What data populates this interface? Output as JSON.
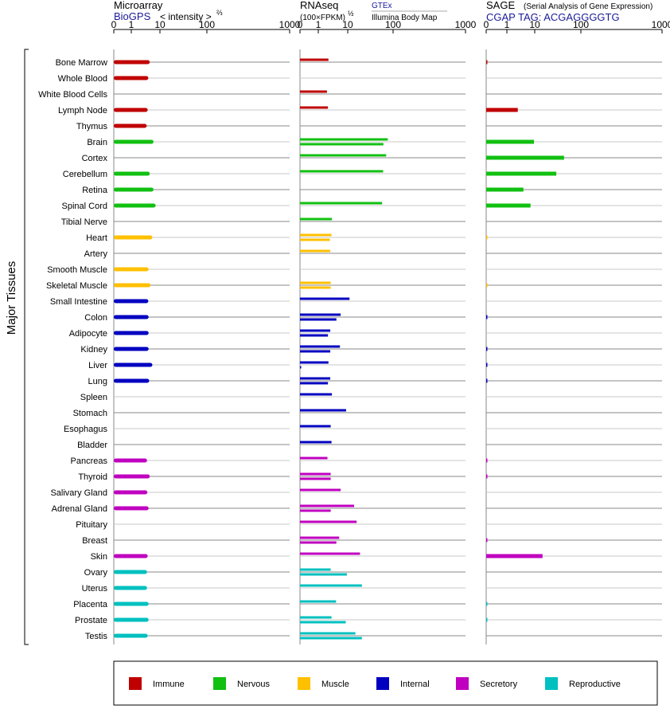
{
  "header": {
    "microarray_title": "Microarray",
    "microarray_source": "BioGPS",
    "microarray_unit": "< intensity >",
    "microarray_unit_exp": "⅔",
    "rnaseq_title": "RNAseq",
    "rnaseq_unit": "(100×FPKM)",
    "rnaseq_unit_exp": "½",
    "rnaseq_source_1": "GTEx",
    "rnaseq_source_2": "Illumina Body Map",
    "sage_title": "SAGE",
    "sage_subtitle": "(Serial Analysis of Gene Expression)",
    "sage_tag": "CGAP TAG: ACGAGGGGTG"
  },
  "chart_data": {
    "type": "bar",
    "orientation": "horizontal",
    "y_group_label": "Major Tissues",
    "x_scale": "power (nonlinear: ticks 0, 1, 10, 100, 1000)",
    "x_ticks": [
      "0",
      "1",
      "10",
      "100",
      "1000"
    ],
    "xlim": [
      0,
      1000
    ],
    "tissues": [
      "Bone Marrow",
      "Whole Blood",
      "White Blood Cells",
      "Lymph Node",
      "Thymus",
      "Brain",
      "Cortex",
      "Cerebellum",
      "Retina",
      "Spinal Cord",
      "Tibial Nerve",
      "Heart",
      "Artery",
      "Smooth Muscle",
      "Skeletal Muscle",
      "Small Intestine",
      "Colon",
      "Adipocyte",
      "Kidney",
      "Liver",
      "Lung",
      "Spleen",
      "Stomach",
      "Esophagus",
      "Bladder",
      "Pancreas",
      "Thyroid",
      "Salivary Gland",
      "Adrenal Gland",
      "Pituitary",
      "Breast",
      "Skin",
      "Ovary",
      "Uterus",
      "Placenta",
      "Prostate",
      "Testis"
    ],
    "tissue_group": [
      "Immune",
      "Immune",
      "Immune",
      "Immune",
      "Immune",
      "Nervous",
      "Nervous",
      "Nervous",
      "Nervous",
      "Nervous",
      "Nervous",
      "Muscle",
      "Muscle",
      "Muscle",
      "Muscle",
      "Internal",
      "Internal",
      "Internal",
      "Internal",
      "Internal",
      "Internal",
      "Internal",
      "Internal",
      "Internal",
      "Internal",
      "Secretory",
      "Secretory",
      "Secretory",
      "Secretory",
      "Secretory",
      "Secretory",
      "Secretory",
      "Reproductive",
      "Reproductive",
      "Reproductive",
      "Reproductive",
      "Reproductive"
    ],
    "groups": [
      {
        "name": "Immune",
        "color": "#c00000"
      },
      {
        "name": "Nervous",
        "color": "#11c011"
      },
      {
        "name": "Muscle",
        "color": "#ffc000"
      },
      {
        "name": "Internal",
        "color": "#0000c0"
      },
      {
        "name": "Secretory",
        "color": "#c000c0"
      },
      {
        "name": "Reproductive",
        "color": "#00c0c0"
      }
    ],
    "microarray": [
      5,
      4.5,
      null,
      4.3,
      4.0,
      6.5,
      null,
      5,
      6.5,
      7.5,
      null,
      6,
      null,
      4.6,
      5.3,
      4.5,
      4.6,
      4.6,
      4.6,
      6,
      4.8,
      null,
      null,
      null,
      null,
      4.1,
      5,
      4.2,
      4.6,
      null,
      null,
      4.3,
      4.1,
      4.1,
      4.6,
      4.6,
      4.3
    ],
    "rnaseq_gtex": [
      2.6,
      null,
      2.3,
      2.5,
      null,
      77,
      71,
      61,
      null,
      58,
      3.4,
      3.3,
      3.0,
      null,
      3.1,
      11,
      6.3,
      3.0,
      6.0,
      2.6,
      3.0,
      3.4,
      9,
      3.1,
      3.3,
      2.4,
      3.1,
      6.3,
      14,
      16,
      5.7,
      19,
      3.1,
      21,
      4.6,
      3.3,
      15
    ],
    "rnaseq_bodymap": [
      null,
      null,
      null,
      null,
      null,
      62,
      null,
      null,
      null,
      null,
      null,
      2.9,
      null,
      null,
      3.1,
      null,
      4.7,
      2.5,
      3.0,
      0.02,
      2.5,
      null,
      null,
      null,
      null,
      null,
      3.1,
      null,
      3.1,
      null,
      4.7,
      null,
      9.5,
      null,
      null,
      8.8,
      21
    ],
    "sage": [
      0.02,
      null,
      null,
      2.9,
      null,
      9.5,
      44,
      30,
      4.5,
      7.5,
      null,
      0.01,
      null,
      null,
      0.01,
      null,
      0.02,
      null,
      0.02,
      0.02,
      0.02,
      null,
      null,
      null,
      null,
      0.02,
      0.02,
      null,
      null,
      null,
      0.02,
      15,
      null,
      null,
      0.01,
      0.01,
      null
    ]
  },
  "legend": {
    "items": [
      "Immune",
      "Nervous",
      "Muscle",
      "Internal",
      "Secretory",
      "Reproductive"
    ]
  }
}
